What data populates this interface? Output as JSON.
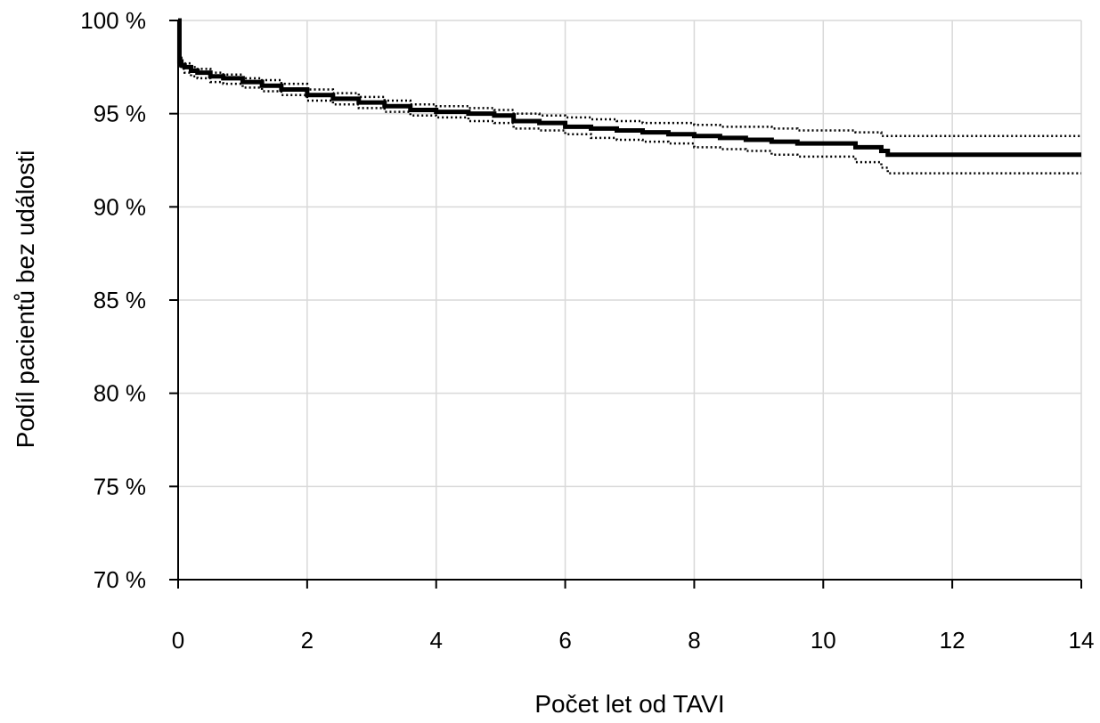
{
  "chart_data": {
    "type": "line",
    "title": "",
    "xlabel": "Počet let od TAVI",
    "ylabel": "Podíl pacientů bez události",
    "xlim": [
      0,
      14
    ],
    "ylim": [
      70,
      100
    ],
    "x_ticks": [
      0,
      2,
      4,
      6,
      8,
      10,
      12,
      14
    ],
    "x_tick_labels": [
      "0",
      "2",
      "4",
      "6",
      "8",
      "10",
      "12",
      "14"
    ],
    "y_ticks": [
      70,
      75,
      80,
      85,
      90,
      95,
      100
    ],
    "y_tick_labels": [
      "70 %",
      "75 %",
      "80 %",
      "85 %",
      "90 %",
      "95 %",
      "100 %"
    ],
    "grid": true,
    "legend": "none",
    "colors": {
      "line": "#000000",
      "grid": "#d9d9d9"
    },
    "series": [
      {
        "style": "solid-thick",
        "step": true,
        "x": [
          0,
          0.02,
          0.05,
          0.1,
          0.2,
          0.3,
          0.5,
          0.7,
          1,
          1.3,
          1.6,
          2,
          2.4,
          2.8,
          3.2,
          3.6,
          4,
          4.5,
          4.9,
          5.2,
          5.6,
          6,
          6.4,
          6.8,
          7.2,
          7.6,
          8,
          8.4,
          8.8,
          9.2,
          9.6,
          10,
          10.5,
          10.9,
          11.0,
          11.5,
          12,
          13,
          14
        ],
        "values": [
          100,
          97.8,
          97.6,
          97.5,
          97.3,
          97.2,
          97.0,
          96.9,
          96.7,
          96.5,
          96.3,
          96.0,
          95.8,
          95.6,
          95.4,
          95.2,
          95.1,
          95.0,
          94.9,
          94.6,
          94.5,
          94.3,
          94.2,
          94.1,
          94.0,
          93.9,
          93.8,
          93.7,
          93.6,
          93.5,
          93.4,
          93.4,
          93.2,
          93.0,
          92.8,
          92.8,
          92.8,
          92.8,
          92.8
        ]
      },
      {
        "style": "dotted",
        "step": true,
        "x": [
          0,
          0.02,
          0.05,
          0.1,
          0.2,
          0.3,
          0.5,
          0.7,
          1,
          1.3,
          1.6,
          2,
          2.4,
          2.8,
          3.2,
          3.6,
          4,
          4.5,
          4.9,
          5.2,
          5.6,
          6,
          6.4,
          6.8,
          7.2,
          7.6,
          8,
          8.4,
          8.8,
          9.2,
          9.6,
          10,
          10.5,
          10.9,
          11.0,
          11.5,
          12,
          13,
          14
        ],
        "values": [
          100,
          98.0,
          97.8,
          97.7,
          97.5,
          97.4,
          97.2,
          97.1,
          96.9,
          96.8,
          96.6,
          96.3,
          96.1,
          95.9,
          95.7,
          95.5,
          95.4,
          95.3,
          95.2,
          95.0,
          94.9,
          94.8,
          94.7,
          94.6,
          94.5,
          94.5,
          94.4,
          94.3,
          94.3,
          94.2,
          94.1,
          94.1,
          94.0,
          93.8,
          93.8,
          93.8,
          93.8,
          93.8,
          93.8
        ]
      },
      {
        "style": "dotted",
        "step": true,
        "x": [
          0,
          0.02,
          0.05,
          0.1,
          0.2,
          0.3,
          0.5,
          0.7,
          1,
          1.3,
          1.6,
          2,
          2.4,
          2.8,
          3.2,
          3.6,
          4,
          4.5,
          4.9,
          5.2,
          5.6,
          6,
          6.4,
          6.8,
          7.2,
          7.6,
          8,
          8.4,
          8.8,
          9.2,
          9.6,
          10,
          10.5,
          10.9,
          11.0,
          11.5,
          12,
          13,
          14
        ],
        "values": [
          100,
          97.6,
          97.4,
          97.2,
          97.0,
          96.9,
          96.7,
          96.6,
          96.4,
          96.2,
          96.0,
          95.7,
          95.5,
          95.3,
          95.1,
          94.9,
          94.8,
          94.6,
          94.5,
          94.2,
          94.1,
          93.9,
          93.7,
          93.6,
          93.5,
          93.4,
          93.2,
          93.1,
          93.0,
          92.8,
          92.7,
          92.7,
          92.4,
          92.1,
          91.8,
          91.8,
          91.8,
          91.8,
          91.8
        ]
      }
    ]
  }
}
